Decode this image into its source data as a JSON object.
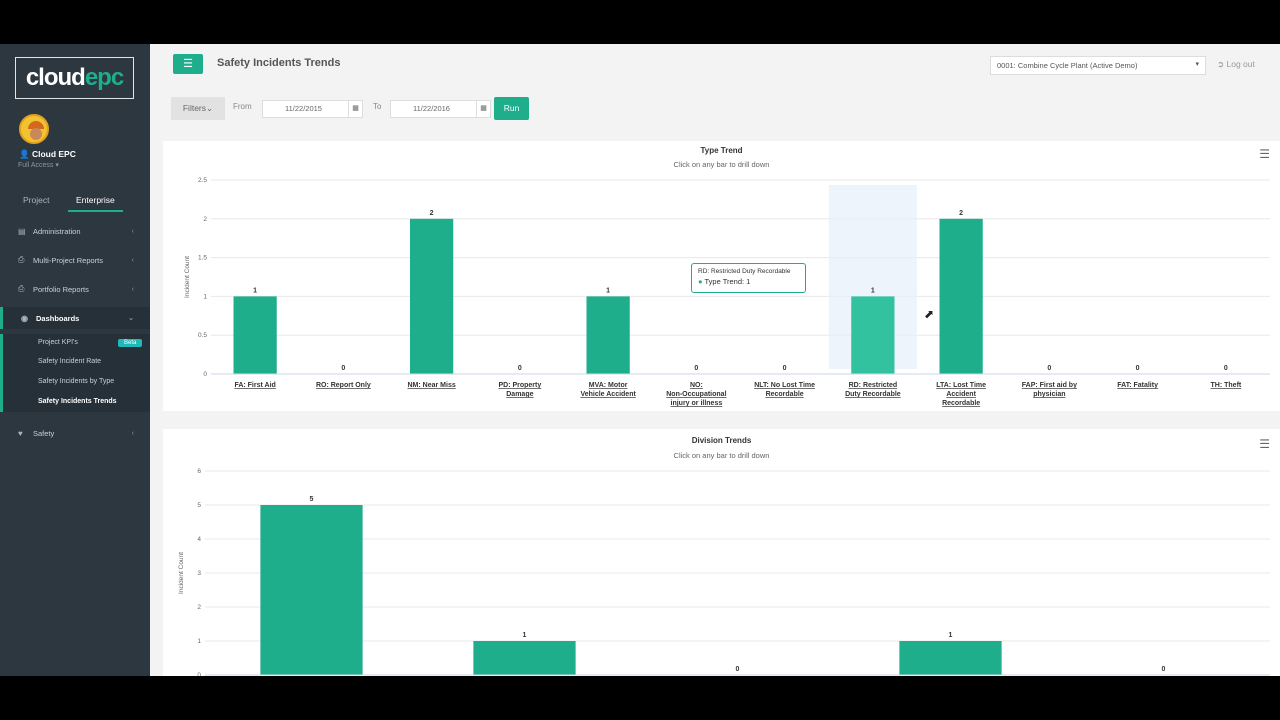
{
  "sidebar": {
    "logo_a": "cloud",
    "logo_b": "epc",
    "user": "Cloud EPC",
    "access": "Full Access ▾",
    "tabs": [
      "Project",
      "Enterprise"
    ],
    "items": [
      {
        "label": "Administration",
        "icon": "bank-icon"
      },
      {
        "label": "Multi-Project Reports",
        "icon": "print-icon"
      },
      {
        "label": "Portfolio Reports",
        "icon": "print-icon"
      },
      {
        "label": "Dashboards",
        "icon": "dashboard-icon"
      },
      {
        "label": "Safety",
        "icon": "heartbeat-icon"
      }
    ],
    "sub": [
      "Project KPI's",
      "Safety Incident Rate",
      "Safety Incidents by Type",
      "Safety Incidents Trends"
    ],
    "beta": "Beta"
  },
  "header": {
    "title": "Safety Incidents Trends",
    "plant": "0001: Combine Cycle Plant (Active Demo)",
    "logout": "Log out"
  },
  "filters": {
    "label": "Filters",
    "from_label": "From",
    "from": "11/22/2015",
    "to_label": "To",
    "to": "11/22/2016",
    "run": "Run"
  },
  "tooltip": {
    "title": "RD: Restricted Duty Recordable",
    "value": "Type Trend: 1"
  },
  "accent": "#1fae8c",
  "chart_data": [
    {
      "type": "bar",
      "title": "Type Trend",
      "subtitle": "Click on any bar to drill down",
      "ylabel": "Incident Count",
      "ylim": [
        0,
        2.5
      ],
      "yticks": [
        "0",
        "0.5",
        "1",
        "1.5",
        "2",
        "2.5"
      ],
      "categories": [
        "FA: First Aid",
        "RO: Report Only",
        "NM: Near Miss",
        "PD: Property Damage",
        "MVA: Motor Vehicle Accident",
        "NO: Non-Occupational injury or illness",
        "NLT: No Lost Time Recordable",
        "RD: Restricted Duty Recordable",
        "LTA: Lost Time Accident Recordable",
        "FAP: First aid by physician",
        "FAT: Fatality",
        "TH: Theft"
      ],
      "values": [
        1,
        0,
        2,
        0,
        1,
        0,
        0,
        1,
        2,
        0,
        0,
        0
      ],
      "hovered": "RD: Restricted Duty Recordable"
    },
    {
      "type": "bar",
      "title": "Division Trends",
      "subtitle": "Click on any bar to drill down",
      "ylabel": "Incident Count",
      "ylim": [
        0,
        6
      ],
      "yticks": [
        "0",
        "1",
        "2",
        "3",
        "4",
        "5",
        "6"
      ],
      "values": [
        5,
        1,
        0,
        1,
        0
      ]
    }
  ]
}
